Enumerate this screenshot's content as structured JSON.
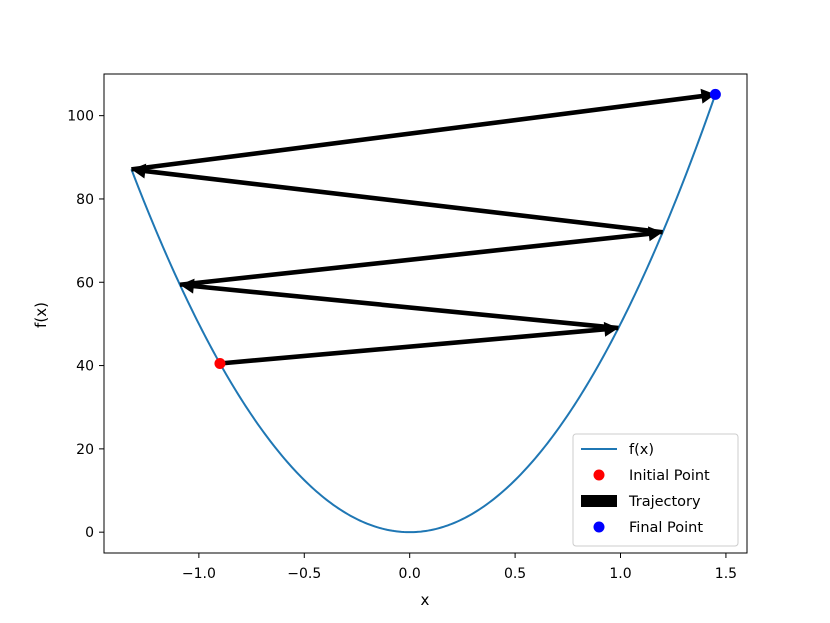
{
  "chart_data": {
    "type": "line",
    "title": "",
    "xlabel": "x",
    "ylabel": "f(x)",
    "xlim": [
      -1.45,
      1.6
    ],
    "ylim": [
      -5,
      110
    ],
    "xticks": [
      -1.0,
      -0.5,
      0.0,
      0.5,
      1.0,
      1.5
    ],
    "xtick_labels": [
      "−1.0",
      "−0.5",
      "0.0",
      "0.5",
      "1.0",
      "1.5"
    ],
    "yticks": [
      0,
      20,
      40,
      60,
      80,
      100
    ],
    "ytick_labels": [
      "0",
      "20",
      "40",
      "60",
      "80",
      "100"
    ],
    "grid": false,
    "legend_position": "lower-right",
    "curve": {
      "name": "f(x)",
      "color": "#1f77b4",
      "formula": "50*x^2",
      "x_range": [
        -1.32,
        1.45
      ]
    },
    "trajectory": {
      "name": "Trajectory",
      "color": "#000000",
      "points": [
        {
          "x": -0.9,
          "y": 40.5
        },
        {
          "x": 0.99,
          "y": 49.0
        },
        {
          "x": -1.09,
          "y": 59.4
        },
        {
          "x": 1.2,
          "y": 72.0
        },
        {
          "x": -1.32,
          "y": 87.1
        },
        {
          "x": 1.45,
          "y": 105.1
        }
      ]
    },
    "initial_point": {
      "name": "Initial Point",
      "x": -0.9,
      "y": 40.5,
      "color": "#ff0000"
    },
    "final_point": {
      "name": "Final Point",
      "x": 1.45,
      "y": 105.1,
      "color": "#0000ff"
    },
    "legend": [
      {
        "label": "f(x)",
        "kind": "line",
        "color": "#1f77b4"
      },
      {
        "label": "Initial Point",
        "kind": "dot",
        "color": "#ff0000"
      },
      {
        "label": "Trajectory",
        "kind": "rect",
        "color": "#000000"
      },
      {
        "label": "Final Point",
        "kind": "dot",
        "color": "#0000ff"
      }
    ]
  }
}
